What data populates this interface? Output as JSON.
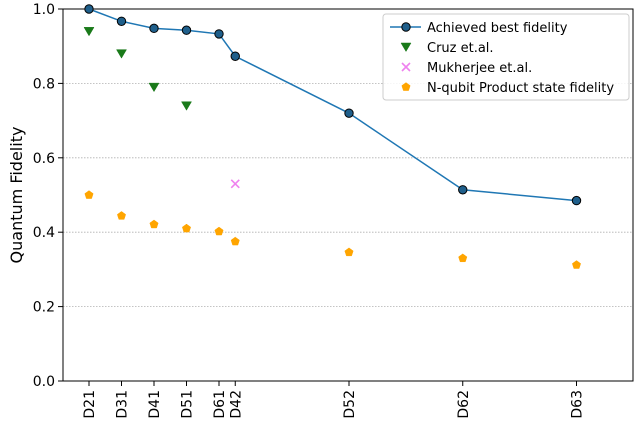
{
  "chart_data": {
    "type": "line",
    "title": "",
    "xlabel": "",
    "ylabel": "Quantum Fidelity",
    "ylim": [
      0.0,
      1.0
    ],
    "yticks": [
      "0.0",
      "0.2",
      "0.4",
      "0.6",
      "0.8",
      "1.0"
    ],
    "y_grid": true,
    "legend_position": "top-right",
    "categories": [
      "D21",
      "D31",
      "D41",
      "D51",
      "D61",
      "D42",
      "D52",
      "D62",
      "D63"
    ],
    "category_positions": [
      1,
      2,
      3,
      4,
      5,
      5.5,
      9,
      12.5,
      16
    ],
    "series": [
      {
        "name": "Achieved best fidelity",
        "kind": "line-marker",
        "marker": "circle",
        "color": "#1f77b4",
        "marker_fill": "#1f5f8b",
        "points": [
          {
            "x": "D21",
            "y": 1.0
          },
          {
            "x": "D31",
            "y": 0.967
          },
          {
            "x": "D41",
            "y": 0.948
          },
          {
            "x": "D51",
            "y": 0.943
          },
          {
            "x": "D61",
            "y": 0.933
          },
          {
            "x": "D42",
            "y": 0.873
          },
          {
            "x": "D52",
            "y": 0.72
          },
          {
            "x": "D62",
            "y": 0.514
          },
          {
            "x": "D63",
            "y": 0.485
          }
        ]
      },
      {
        "name": "Cruz et.al.",
        "kind": "scatter",
        "marker": "triangle-down",
        "color": "#1a7a1a",
        "points": [
          {
            "x": "D21",
            "y": 0.94
          },
          {
            "x": "D31",
            "y": 0.88
          },
          {
            "x": "D41",
            "y": 0.79
          },
          {
            "x": "D51",
            "y": 0.74
          }
        ]
      },
      {
        "name": "Mukherjee et.al.",
        "kind": "scatter",
        "marker": "x",
        "color": "#ee82ee",
        "points": [
          {
            "x": "D42",
            "y": 0.53
          }
        ]
      },
      {
        "name": "N-qubit Product state fidelity",
        "kind": "scatter",
        "marker": "pentagon",
        "color": "#ffa500",
        "points": [
          {
            "x": "D21",
            "y": 0.5
          },
          {
            "x": "D31",
            "y": 0.444
          },
          {
            "x": "D41",
            "y": 0.421
          },
          {
            "x": "D51",
            "y": 0.41
          },
          {
            "x": "D61",
            "y": 0.402
          },
          {
            "x": "D42",
            "y": 0.375
          },
          {
            "x": "D52",
            "y": 0.346
          },
          {
            "x": "D62",
            "y": 0.33
          },
          {
            "x": "D63",
            "y": 0.312
          }
        ]
      }
    ]
  }
}
